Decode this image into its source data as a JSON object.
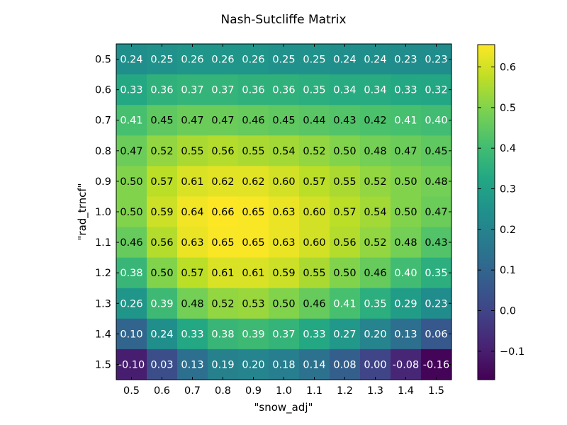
{
  "chart_data": {
    "type": "heatmap",
    "title": "Nash-Sutcliffe Matrix",
    "xlabel": "\"snow_adj\"",
    "ylabel": "\"rad_trncf\"",
    "x_categories": [
      "0.5",
      "0.6",
      "0.7",
      "0.8",
      "0.9",
      "1.0",
      "1.1",
      "1.2",
      "1.3",
      "1.4",
      "1.5"
    ],
    "y_categories": [
      "0.5",
      "0.6",
      "0.7",
      "0.8",
      "0.9",
      "1.0",
      "1.1",
      "1.2",
      "1.3",
      "1.4",
      "1.5"
    ],
    "values": [
      [
        0.24,
        0.25,
        0.26,
        0.26,
        0.26,
        0.25,
        0.25,
        0.24,
        0.24,
        0.23,
        0.23
      ],
      [
        0.33,
        0.36,
        0.37,
        0.37,
        0.36,
        0.36,
        0.35,
        0.34,
        0.34,
        0.33,
        0.32
      ],
      [
        0.41,
        0.45,
        0.47,
        0.47,
        0.46,
        0.45,
        0.44,
        0.43,
        0.42,
        0.41,
        0.4
      ],
      [
        0.47,
        0.52,
        0.55,
        0.56,
        0.55,
        0.54,
        0.52,
        0.5,
        0.48,
        0.47,
        0.45
      ],
      [
        0.5,
        0.57,
        0.61,
        0.62,
        0.62,
        0.6,
        0.57,
        0.55,
        0.52,
        0.5,
        0.48
      ],
      [
        0.5,
        0.59,
        0.64,
        0.66,
        0.65,
        0.63,
        0.6,
        0.57,
        0.54,
        0.5,
        0.47
      ],
      [
        0.46,
        0.56,
        0.63,
        0.65,
        0.65,
        0.63,
        0.6,
        0.56,
        0.52,
        0.48,
        0.43
      ],
      [
        0.38,
        0.5,
        0.57,
        0.61,
        0.61,
        0.59,
        0.55,
        0.5,
        0.46,
        0.4,
        0.35
      ],
      [
        0.26,
        0.39,
        0.48,
        0.52,
        0.53,
        0.5,
        0.46,
        0.41,
        0.35,
        0.29,
        0.23
      ],
      [
        0.1,
        0.24,
        0.33,
        0.38,
        0.39,
        0.37,
        0.33,
        0.27,
        0.2,
        0.13,
        0.06
      ],
      [
        -0.1,
        0.03,
        0.13,
        0.19,
        0.2,
        0.18,
        0.14,
        0.08,
        0.0,
        -0.08,
        -0.16
      ]
    ],
    "value_labels": [
      [
        "0.24",
        "0.25",
        "0.26",
        "0.26",
        "0.26",
        "0.25",
        "0.25",
        "0.24",
        "0.24",
        "0.23",
        "0.23"
      ],
      [
        "0.33",
        "0.36",
        "0.37",
        "0.37",
        "0.36",
        "0.36",
        "0.35",
        "0.34",
        "0.34",
        "0.33",
        "0.32"
      ],
      [
        "0.41",
        "0.45",
        "0.47",
        "0.47",
        "0.46",
        "0.45",
        "0.44",
        "0.43",
        "0.42",
        "0.41",
        "0.40"
      ],
      [
        "0.47",
        "0.52",
        "0.55",
        "0.56",
        "0.55",
        "0.54",
        "0.52",
        "0.50",
        "0.48",
        "0.47",
        "0.45"
      ],
      [
        "0.50",
        "0.57",
        "0.61",
        "0.62",
        "0.62",
        "0.60",
        "0.57",
        "0.55",
        "0.52",
        "0.50",
        "0.48"
      ],
      [
        "0.50",
        "0.59",
        "0.64",
        "0.66",
        "0.65",
        "0.63",
        "0.60",
        "0.57",
        "0.54",
        "0.50",
        "0.47"
      ],
      [
        "0.46",
        "0.56",
        "0.63",
        "0.65",
        "0.65",
        "0.63",
        "0.60",
        "0.56",
        "0.52",
        "0.48",
        "0.43"
      ],
      [
        "0.38",
        "0.50",
        "0.57",
        "0.61",
        "0.61",
        "0.59",
        "0.55",
        "0.50",
        "0.46",
        "0.40",
        "0.35"
      ],
      [
        "0.26",
        "0.39",
        "0.48",
        "0.52",
        "0.53",
        "0.50",
        "0.46",
        "0.41",
        "0.35",
        "0.29",
        "0.23"
      ],
      [
        "0.10",
        "0.24",
        "0.33",
        "0.38",
        "0.39",
        "0.37",
        "0.33",
        "0.27",
        "0.20",
        "0.13",
        "0.06"
      ],
      [
        "-0.10",
        "0.03",
        "0.13",
        "0.19",
        "0.20",
        "0.18",
        "0.14",
        "0.08",
        "0.00",
        "-0.08",
        "-0.16"
      ]
    ],
    "colormap": "viridis",
    "vmin": -0.17,
    "vmax": 0.655,
    "colorbar_ticks": [
      -0.1,
      0.0,
      0.1,
      0.2,
      0.3,
      0.4,
      0.5,
      0.6
    ],
    "colorbar_tick_labels": [
      "−0.1",
      "0.0",
      "0.1",
      "0.2",
      "0.3",
      "0.4",
      "0.5",
      "0.6"
    ],
    "label_color_threshold": 0.415,
    "label_colors": {
      "light": "#ffffff",
      "dark": "#000000"
    }
  }
}
